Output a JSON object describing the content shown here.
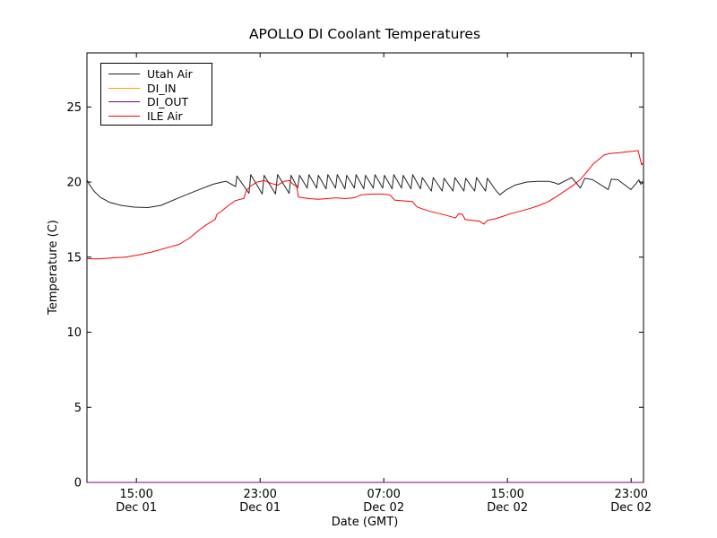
{
  "chart_data": {
    "type": "line",
    "title": "APOLLO DI Coolant Temperatures",
    "xlabel": "Date (GMT)",
    "ylabel": "Temperature (C)",
    "grid": false,
    "legend_position": "upper left",
    "x_unit": "hours since Dec 01 00:00 GMT",
    "xlim": [
      11.8,
      47.8
    ],
    "ylim": [
      0,
      28.6
    ],
    "x_ticks": [
      {
        "value": 15,
        "time": "15:00",
        "date": "Dec 01"
      },
      {
        "value": 23,
        "time": "23:00",
        "date": "Dec 01"
      },
      {
        "value": 31,
        "time": "07:00",
        "date": "Dec 02"
      },
      {
        "value": 39,
        "time": "15:00",
        "date": "Dec 02"
      },
      {
        "value": 47,
        "time": "23:00",
        "date": "Dec 02"
      }
    ],
    "y_ticks": [
      {
        "value": 0,
        "label": "0"
      },
      {
        "value": 5,
        "label": "5"
      },
      {
        "value": 10,
        "label": "10"
      },
      {
        "value": 15,
        "label": "15"
      },
      {
        "value": 20,
        "label": "20"
      },
      {
        "value": 25,
        "label": "25"
      }
    ],
    "series": [
      {
        "name": "Utah Air",
        "color": "#222222",
        "points": [
          [
            11.8,
            20.15
          ],
          [
            11.95,
            19.85
          ],
          [
            12.25,
            19.4
          ],
          [
            12.65,
            19.0
          ],
          [
            13.25,
            18.65
          ],
          [
            14.0,
            18.45
          ],
          [
            14.85,
            18.33
          ],
          [
            15.75,
            18.3
          ],
          [
            16.6,
            18.45
          ],
          [
            17.75,
            18.95
          ],
          [
            18.95,
            19.45
          ],
          [
            19.95,
            19.85
          ],
          [
            20.55,
            20.0
          ],
          [
            20.8,
            20.05
          ],
          [
            21.15,
            19.85
          ],
          [
            21.42,
            19.7
          ],
          [
            21.5,
            20.4
          ],
          [
            22.28,
            19.25
          ],
          [
            22.4,
            20.5
          ],
          [
            23.14,
            19.2
          ],
          [
            23.26,
            20.45
          ],
          [
            24.0,
            19.2
          ],
          [
            24.13,
            20.5
          ],
          [
            24.88,
            19.25
          ],
          [
            25.0,
            20.45
          ],
          [
            25.43,
            19.6
          ],
          [
            25.55,
            20.45
          ],
          [
            26.05,
            19.6
          ],
          [
            26.16,
            20.5
          ],
          [
            26.66,
            19.6
          ],
          [
            26.77,
            20.45
          ],
          [
            27.27,
            19.55
          ],
          [
            27.38,
            20.5
          ],
          [
            27.88,
            19.6
          ],
          [
            27.99,
            20.5
          ],
          [
            28.49,
            19.55
          ],
          [
            28.6,
            20.45
          ],
          [
            29.1,
            19.6
          ],
          [
            29.21,
            20.5
          ],
          [
            29.71,
            19.55
          ],
          [
            29.82,
            20.45
          ],
          [
            30.32,
            19.6
          ],
          [
            30.43,
            20.5
          ],
          [
            30.93,
            19.6
          ],
          [
            31.04,
            20.45
          ],
          [
            31.54,
            19.55
          ],
          [
            31.65,
            20.5
          ],
          [
            32.15,
            19.6
          ],
          [
            32.26,
            20.45
          ],
          [
            32.76,
            19.55
          ],
          [
            32.87,
            20.5
          ],
          [
            33.37,
            19.55
          ],
          [
            33.49,
            20.3
          ],
          [
            34.08,
            19.4
          ],
          [
            34.2,
            20.3
          ],
          [
            34.78,
            19.4
          ],
          [
            34.9,
            20.25
          ],
          [
            35.48,
            19.4
          ],
          [
            35.6,
            20.3
          ],
          [
            36.18,
            19.4
          ],
          [
            36.3,
            20.25
          ],
          [
            36.88,
            19.4
          ],
          [
            37.0,
            20.3
          ],
          [
            37.58,
            19.4
          ],
          [
            37.7,
            20.25
          ],
          [
            38.28,
            19.4
          ],
          [
            38.5,
            19.15
          ],
          [
            38.95,
            19.5
          ],
          [
            39.5,
            19.8
          ],
          [
            40.25,
            20.0
          ],
          [
            40.95,
            20.05
          ],
          [
            41.65,
            20.05
          ],
          [
            42.05,
            19.95
          ],
          [
            42.3,
            19.85
          ],
          [
            43.15,
            20.3
          ],
          [
            43.72,
            19.6
          ],
          [
            44.0,
            20.25
          ],
          [
            44.52,
            20.15
          ],
          [
            45.52,
            19.5
          ],
          [
            45.72,
            20.2
          ],
          [
            46.15,
            20.15
          ],
          [
            46.98,
            19.5
          ],
          [
            47.32,
            19.9
          ],
          [
            47.5,
            20.15
          ],
          [
            47.63,
            19.85
          ],
          [
            47.8,
            20.0
          ]
        ]
      },
      {
        "name": "DI_IN",
        "color": "#ffa500",
        "points": [
          [
            11.8,
            0
          ],
          [
            47.8,
            0
          ]
        ]
      },
      {
        "name": "DI_OUT",
        "color": "#800080",
        "points": [
          [
            11.8,
            0
          ],
          [
            47.8,
            0
          ]
        ]
      },
      {
        "name": "ILE Air",
        "color": "#ff0000",
        "points": [
          [
            11.8,
            14.9
          ],
          [
            12.55,
            14.88
          ],
          [
            13.42,
            14.95
          ],
          [
            14.29,
            15.0
          ],
          [
            15.16,
            15.15
          ],
          [
            16.03,
            15.35
          ],
          [
            16.9,
            15.6
          ],
          [
            17.77,
            15.85
          ],
          [
            18.47,
            16.3
          ],
          [
            19.05,
            16.8
          ],
          [
            19.51,
            17.15
          ],
          [
            19.92,
            17.4
          ],
          [
            20.09,
            17.5
          ],
          [
            20.21,
            17.85
          ],
          [
            20.55,
            18.1
          ],
          [
            20.96,
            18.45
          ],
          [
            21.37,
            18.75
          ],
          [
            21.71,
            18.85
          ],
          [
            21.94,
            18.9
          ],
          [
            22.12,
            19.45
          ],
          [
            22.41,
            19.75
          ],
          [
            22.81,
            20.0
          ],
          [
            23.28,
            20.1
          ],
          [
            23.74,
            19.9
          ],
          [
            24.15,
            19.8
          ],
          [
            24.55,
            20.05
          ],
          [
            24.9,
            20.1
          ],
          [
            25.08,
            19.9
          ],
          [
            25.37,
            19.7
          ],
          [
            25.48,
            19.0
          ],
          [
            26.18,
            18.9
          ],
          [
            26.76,
            18.85
          ],
          [
            27.34,
            18.9
          ],
          [
            27.92,
            18.95
          ],
          [
            28.5,
            18.9
          ],
          [
            29.08,
            18.95
          ],
          [
            29.54,
            19.15
          ],
          [
            30.24,
            19.2
          ],
          [
            30.82,
            19.2
          ],
          [
            31.4,
            19.15
          ],
          [
            31.69,
            18.8
          ],
          [
            32.27,
            18.75
          ],
          [
            32.85,
            18.7
          ],
          [
            33.14,
            18.35
          ],
          [
            33.54,
            18.2
          ],
          [
            34.0,
            18.05
          ],
          [
            34.58,
            17.9
          ],
          [
            35.16,
            17.75
          ],
          [
            35.63,
            17.6
          ],
          [
            35.86,
            17.9
          ],
          [
            36.09,
            17.85
          ],
          [
            36.26,
            17.5
          ],
          [
            36.73,
            17.45
          ],
          [
            37.19,
            17.4
          ],
          [
            37.48,
            17.2
          ],
          [
            37.71,
            17.45
          ],
          [
            38.18,
            17.55
          ],
          [
            38.64,
            17.7
          ],
          [
            39.22,
            17.9
          ],
          [
            39.8,
            18.05
          ],
          [
            40.49,
            18.25
          ],
          [
            41.07,
            18.45
          ],
          [
            41.65,
            18.7
          ],
          [
            42.12,
            19.0
          ],
          [
            42.7,
            19.4
          ],
          [
            43.28,
            19.8
          ],
          [
            43.74,
            20.2
          ],
          [
            44.15,
            20.7
          ],
          [
            44.55,
            21.2
          ],
          [
            44.9,
            21.5
          ],
          [
            45.25,
            21.8
          ],
          [
            45.6,
            21.9
          ],
          [
            46.18,
            21.95
          ],
          [
            46.64,
            22.0
          ],
          [
            47.11,
            22.05
          ],
          [
            47.45,
            22.1
          ],
          [
            47.57,
            21.6
          ],
          [
            47.68,
            21.15
          ],
          [
            47.8,
            21.3
          ]
        ]
      }
    ]
  }
}
